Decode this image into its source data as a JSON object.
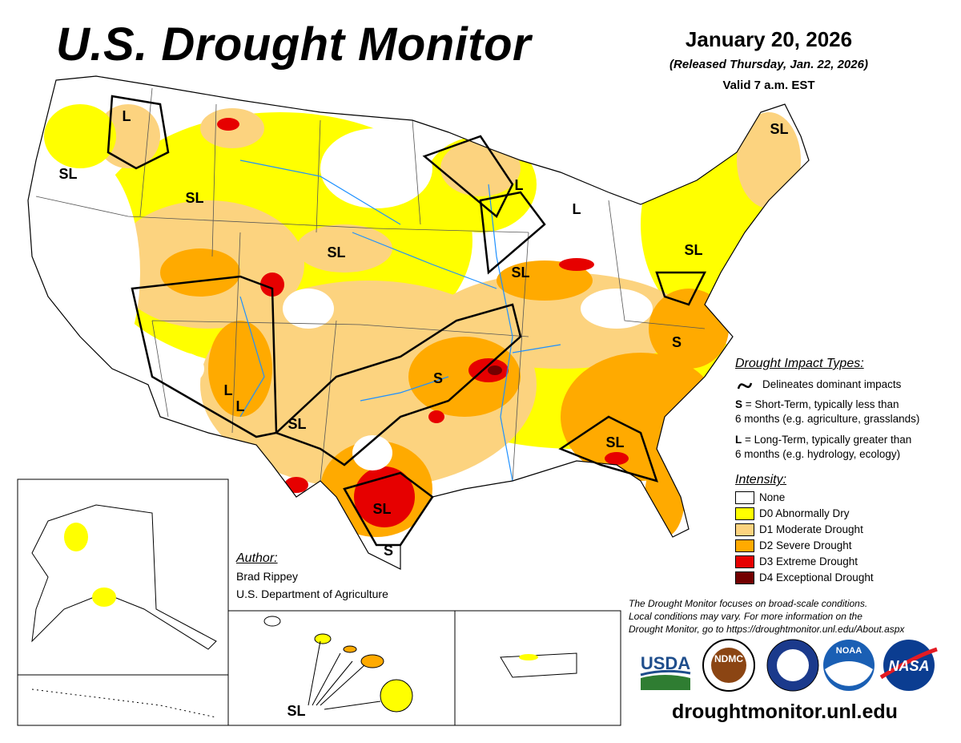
{
  "header": {
    "title": "U.S. Drought Monitor",
    "date": "January 20, 2026",
    "released": "(Released Thursday, Jan. 22, 2026)",
    "valid": "Valid 7 a.m. EST"
  },
  "map_labels": [
    "L",
    "SL",
    "SL",
    "SL",
    "L",
    "L",
    "SL",
    "SL",
    "SL",
    "S",
    "S",
    "L",
    "L",
    "SL",
    "SL",
    "S",
    "SL",
    "SL"
  ],
  "impact_types": {
    "title": "Drought Impact Types:",
    "delineates": "Delineates dominant impacts",
    "short_term": {
      "key": "S",
      "lines": [
        "= Short-Term, typically less than",
        "6 months (e.g. agriculture, grasslands)"
      ]
    },
    "long_term": {
      "key": "L",
      "lines": [
        "= Long-Term, typically greater than",
        "6 months (e.g. hydrology, ecology)"
      ]
    }
  },
  "intensity": {
    "title": "Intensity:",
    "items": [
      {
        "label": "None",
        "color": "#ffffff"
      },
      {
        "label": "D0 Abnormally Dry",
        "color": "#ffff00"
      },
      {
        "label": "D1 Moderate Drought",
        "color": "#fcd37f"
      },
      {
        "label": "D2 Severe Drought",
        "color": "#ffaa00"
      },
      {
        "label": "D3 Extreme Drought",
        "color": "#e60000"
      },
      {
        "label": "D4 Exceptional Drought",
        "color": "#730000"
      }
    ]
  },
  "author": {
    "heading": "Author:",
    "name": "Brad Rippey",
    "organization": "U.S. Department of Agriculture"
  },
  "disclaimer": [
    "The Drought Monitor focuses on broad-scale conditions.",
    "Local conditions may vary. For more information on the",
    "Drought Monitor, go to https://droughtmonitor.unl.edu/About.aspx"
  ],
  "logos": [
    "USDA",
    "NDMC",
    "NOAA",
    "NASA"
  ],
  "url": "droughtmonitor.unl.edu"
}
